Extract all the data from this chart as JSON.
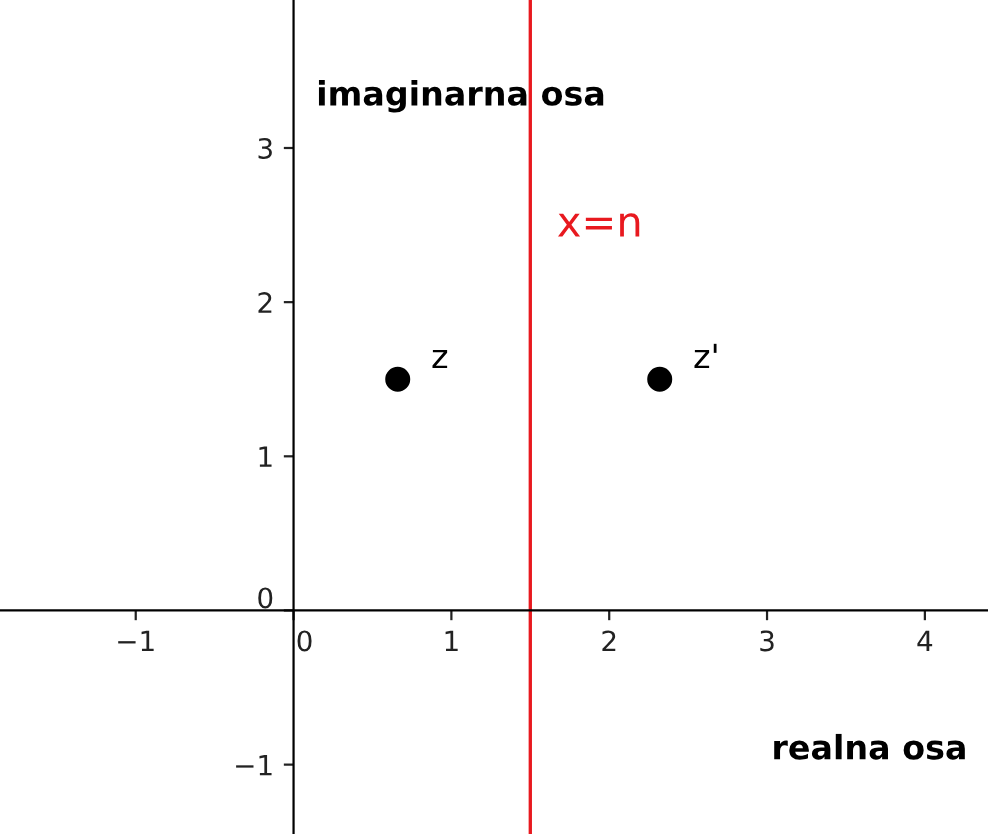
{
  "chart_data": {
    "type": "scatter",
    "xlabel": "realna osa",
    "ylabel": "imaginarna osa",
    "x": [
      0.66,
      2.32
    ],
    "values": [
      1.5,
      1.5
    ],
    "color": "#000000",
    "marker": "circle",
    "annotations": [
      {
        "text": "z",
        "x": 0.66,
        "y": 1.5
      },
      {
        "text": "z'",
        "x": 2.32,
        "y": 1.5
      }
    ],
    "ref_lines": [
      {
        "axis": "x",
        "value": 1.5,
        "label": "x=n",
        "color": "#e8191f"
      }
    ],
    "xlim": [
      -1.86,
      4.4
    ],
    "ylim": [
      -1.45,
      3.96
    ],
    "xticks": [
      -1,
      0,
      1,
      2,
      3,
      4
    ],
    "yticks": [
      -1,
      0,
      1,
      2,
      3
    ],
    "grid": false,
    "legend": false
  }
}
